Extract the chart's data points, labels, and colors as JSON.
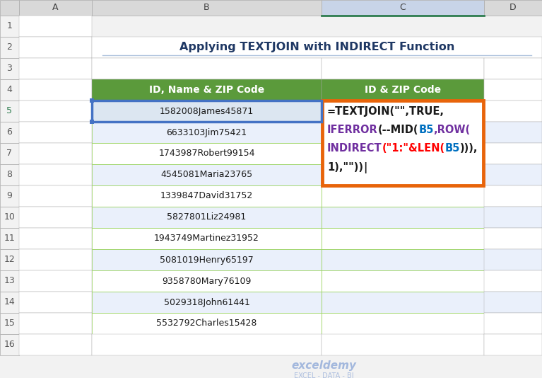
{
  "title": "Applying TEXTJOIN with INDIRECT Function",
  "col_headers": [
    "ID, Name & ZIP Code",
    "ID & ZIP Code"
  ],
  "col_b_data": [
    "1582008James45871",
    "6633103Jim75421",
    "1743987Robert99154",
    "4545081Maria23765",
    "1339847David31752",
    "5827801Liz24981",
    "1943749Martinez31952",
    "5081019Henry65197",
    "9358780Mary76109",
    "5029318John61441",
    "5532792Charles15428"
  ],
  "header_bg": "#5B9A3B",
  "header_text": "#FFFFFF",
  "row_bg_even": "#EAF0FB",
  "row_bg_odd": "#FFFFFF",
  "row_selected_bg": "#DCE6F1",
  "grid_color_green": "#92D050",
  "col_label_bg": "#D9D9D9",
  "col_label_bg_c": "#C8D4E8",
  "col_label_text": "#404040",
  "row_label_bg": "#F2F2F2",
  "row_label_text": "#595959",
  "title_color": "#1F3864",
  "formula_box_color": "#E8640A",
  "watermark": "exceldemy",
  "watermark_sub": "EXCEL - DATA - BI",
  "bg_color": "#FFFFFF",
  "outer_bg": "#F2F2F2"
}
